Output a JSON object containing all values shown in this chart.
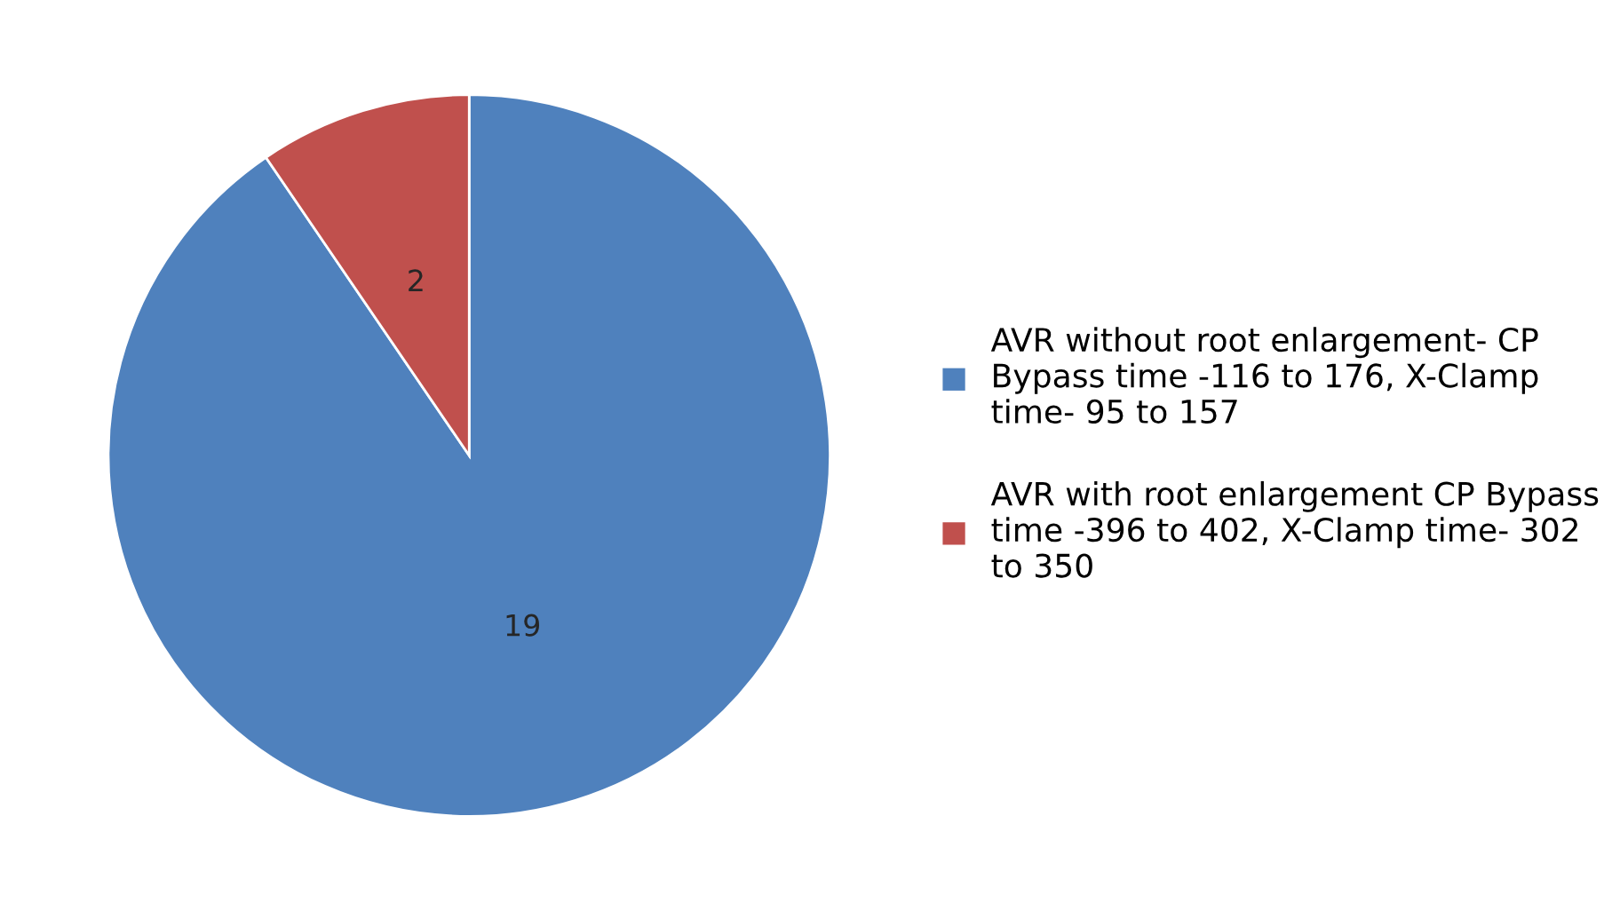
{
  "chart_data": {
    "type": "pie",
    "categories": [
      "AVR without root enlargement- CP Bypass time -116 to 176, X-Clamp time- 95 to 157",
      "AVR with root enlargement CP Bypass time -396 to 402, X-Clamp time- 302 to 350"
    ],
    "values": [
      19,
      2
    ],
    "colors": [
      "#4f81bd",
      "#c0504d"
    ],
    "data_labels": true,
    "legend": "right"
  }
}
